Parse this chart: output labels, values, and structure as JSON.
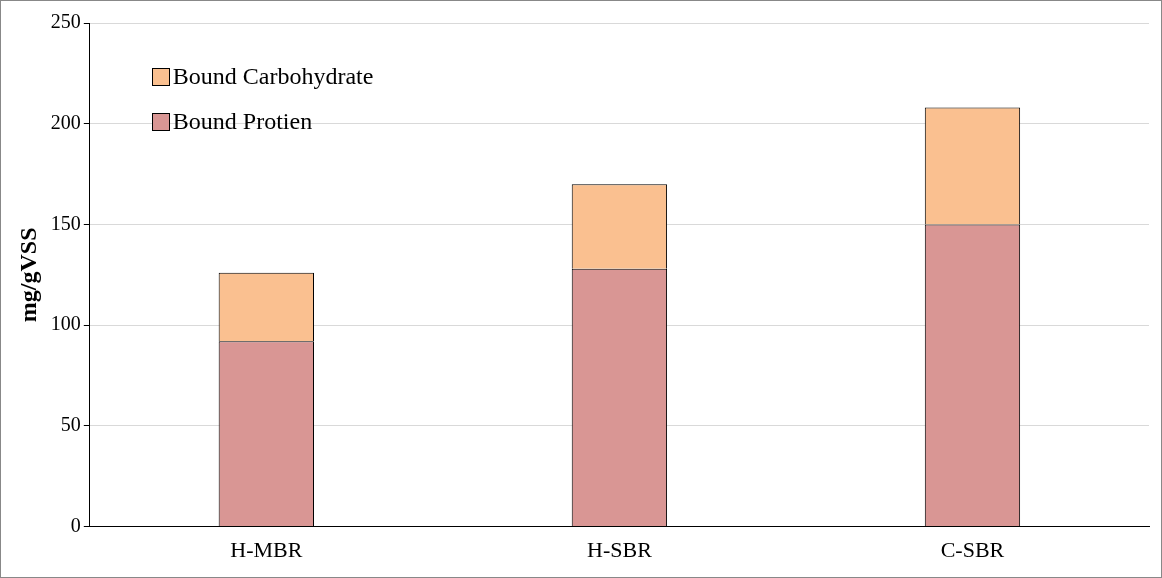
{
  "chart_data": {
    "type": "bar",
    "ylabel": "mg/gVSS",
    "categories": [
      "H-MBR",
      "H-SBR",
      "C-SBR"
    ],
    "stacked": true,
    "series": [
      {
        "name": "Bound Protien",
        "color": "#d99694",
        "values": [
          92,
          128,
          150
        ]
      },
      {
        "name": "Bound Carbohydrate",
        "color": "#fac090",
        "values": [
          34,
          42,
          58
        ]
      }
    ],
    "ylim": [
      0,
      250
    ],
    "yticks": [
      0,
      50,
      100,
      150,
      200,
      250
    ],
    "grid": "y",
    "legend": "top left"
  }
}
